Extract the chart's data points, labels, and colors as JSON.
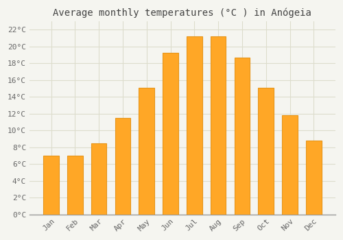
{
  "title": "Average monthly temperatures (°C ) in Anógeia",
  "months": [
    "Jan",
    "Feb",
    "Mar",
    "Apr",
    "May",
    "Jun",
    "Jul",
    "Aug",
    "Sep",
    "Oct",
    "Nov",
    "Dec"
  ],
  "values": [
    7.0,
    7.0,
    8.5,
    11.5,
    15.1,
    19.2,
    21.2,
    21.2,
    18.7,
    15.1,
    11.8,
    8.8
  ],
  "bar_face_color": "#FFA726",
  "bar_edge_color": "#E6951A",
  "background_color": "#F5F5F0",
  "plot_bg_color": "#F5F5F0",
  "grid_color": "#DDDDCC",
  "ylim": [
    0,
    23
  ],
  "yticks": [
    0,
    2,
    4,
    6,
    8,
    10,
    12,
    14,
    16,
    18,
    20,
    22
  ],
  "title_fontsize": 10,
  "tick_fontsize": 8,
  "font_family": "monospace"
}
